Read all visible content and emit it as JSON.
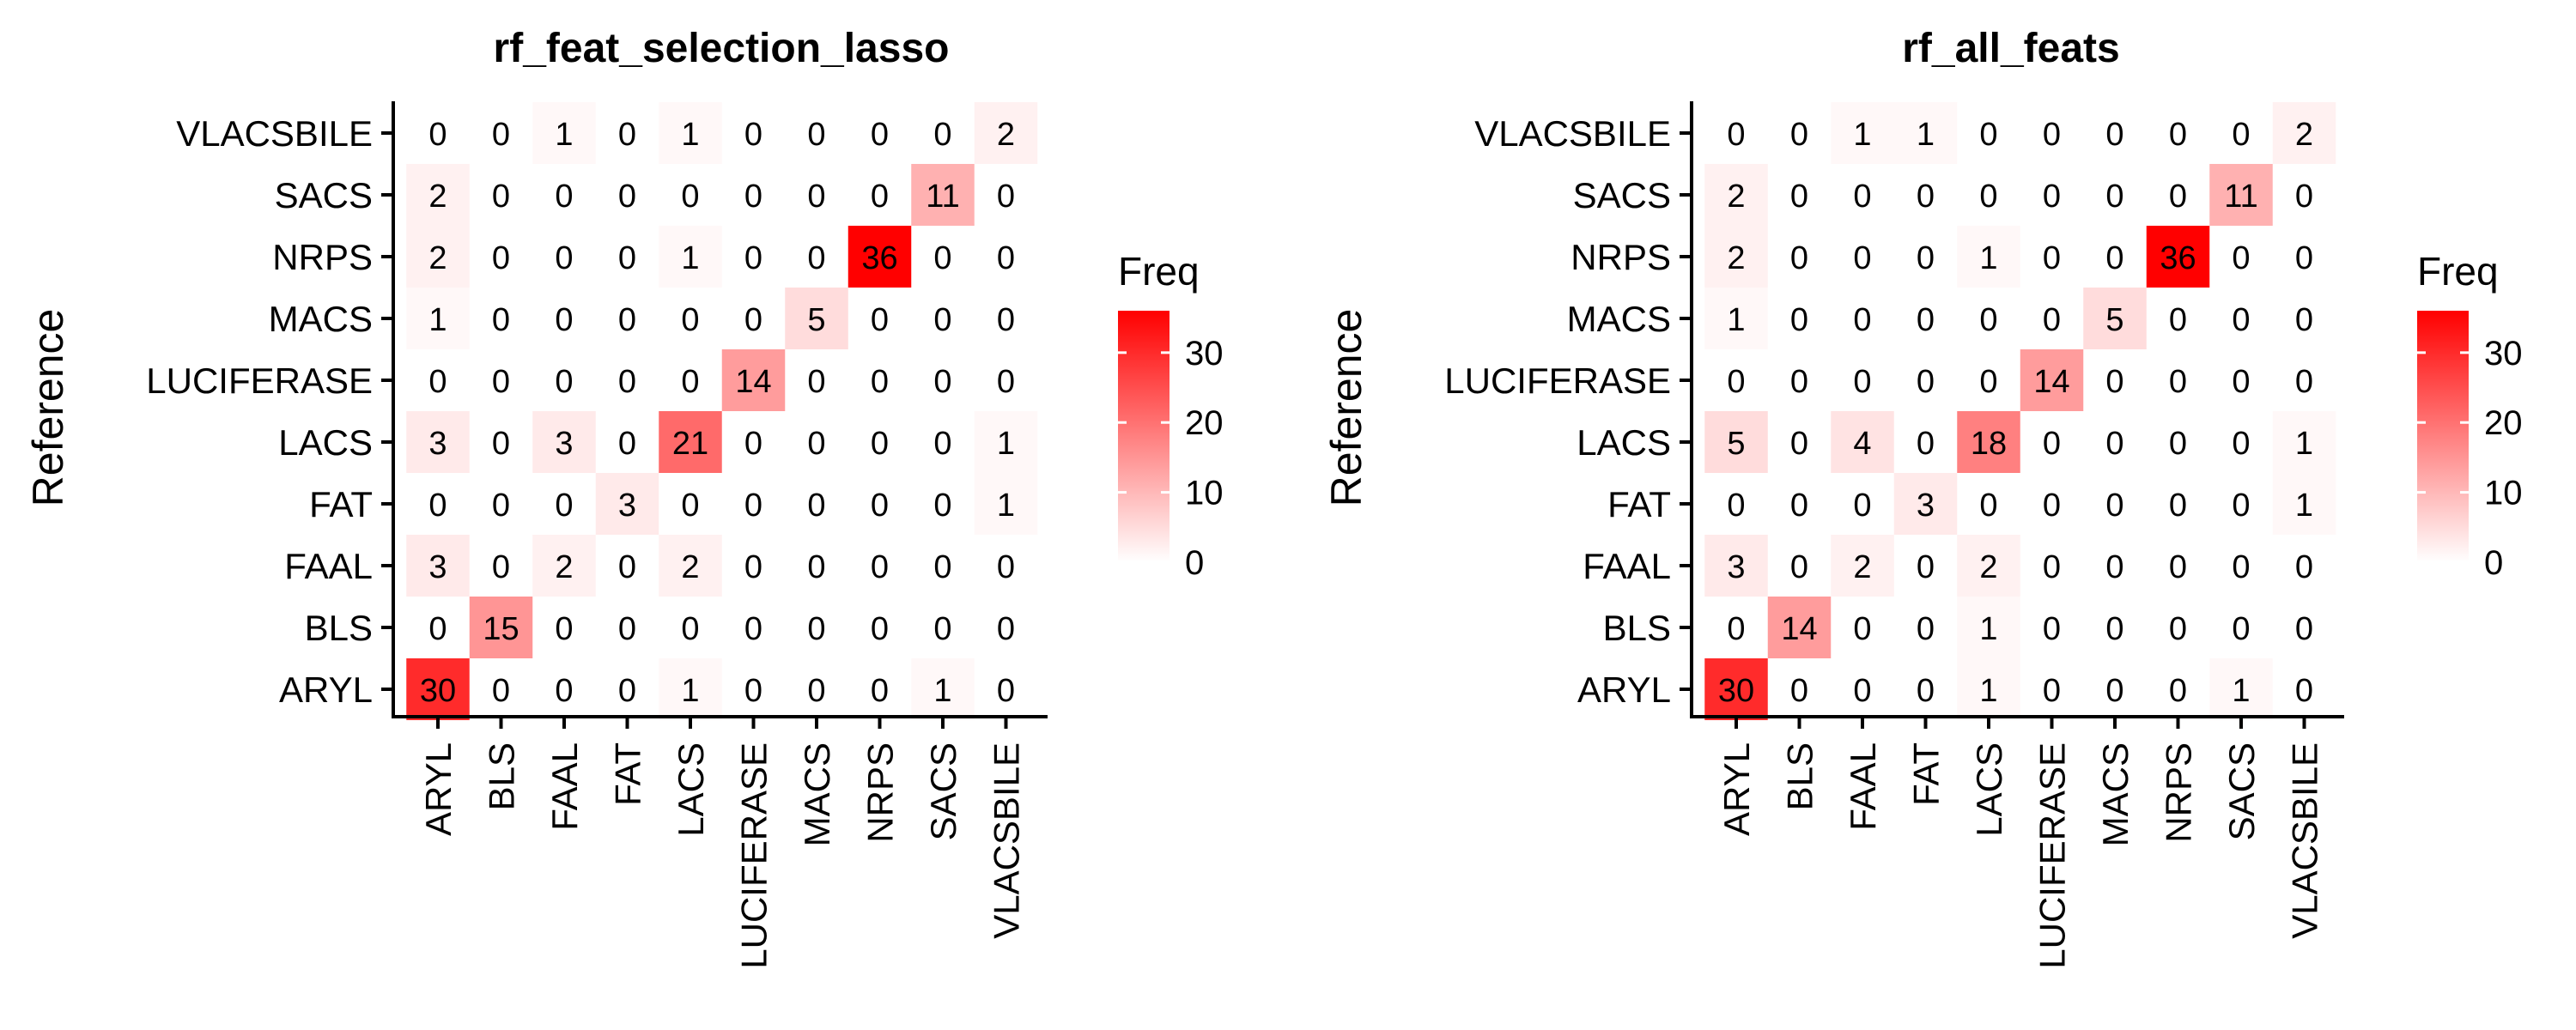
{
  "chart_data": [
    {
      "type": "heatmap",
      "title": "rf_feat_selection_lasso",
      "xlabel": "",
      "ylabel": "Reference",
      "x_categories": [
        "ARYL",
        "BLS",
        "FAAL",
        "FAT",
        "LACS",
        "LUCIFERASE",
        "MACS",
        "NRPS",
        "SACS",
        "VLACSBILE"
      ],
      "y_categories": [
        "ARYL",
        "BLS",
        "FAAL",
        "FAT",
        "LACS",
        "LUCIFERASE",
        "MACS",
        "NRPS",
        "SACS",
        "VLACSBILE"
      ],
      "matrix_note": "rows listed top to bottom: VLACSBILE ... ARYL; columns ARYL ... VLACSBILE",
      "values": [
        [
          0,
          0,
          1,
          0,
          1,
          0,
          0,
          0,
          0,
          2
        ],
        [
          2,
          0,
          0,
          0,
          0,
          0,
          0,
          0,
          11,
          0
        ],
        [
          2,
          0,
          0,
          0,
          1,
          0,
          0,
          36,
          0,
          0
        ],
        [
          1,
          0,
          0,
          0,
          0,
          0,
          5,
          0,
          0,
          0
        ],
        [
          0,
          0,
          0,
          0,
          0,
          14,
          0,
          0,
          0,
          0
        ],
        [
          3,
          0,
          3,
          0,
          21,
          0,
          0,
          0,
          0,
          1
        ],
        [
          0,
          0,
          0,
          3,
          0,
          0,
          0,
          0,
          0,
          1
        ],
        [
          3,
          0,
          2,
          0,
          2,
          0,
          0,
          0,
          0,
          0
        ],
        [
          0,
          15,
          0,
          0,
          0,
          0,
          0,
          0,
          0,
          0
        ],
        [
          30,
          0,
          0,
          0,
          1,
          0,
          0,
          0,
          1,
          0
        ]
      ],
      "legend": {
        "title": "Freq",
        "min": 0,
        "max": 36,
        "ticks": [
          0,
          10,
          20,
          30
        ],
        "low_color": "#ffffff",
        "high_color": "#ff0000"
      }
    },
    {
      "type": "heatmap",
      "title": "rf_all_feats",
      "xlabel": "",
      "ylabel": "Reference",
      "x_categories": [
        "ARYL",
        "BLS",
        "FAAL",
        "FAT",
        "LACS",
        "LUCIFERASE",
        "MACS",
        "NRPS",
        "SACS",
        "VLACSBILE"
      ],
      "y_categories": [
        "ARYL",
        "BLS",
        "FAAL",
        "FAT",
        "LACS",
        "LUCIFERASE",
        "MACS",
        "NRPS",
        "SACS",
        "VLACSBILE"
      ],
      "matrix_note": "rows listed top to bottom: VLACSBILE ... ARYL; columns ARYL ... VLACSBILE",
      "values": [
        [
          0,
          0,
          1,
          1,
          0,
          0,
          0,
          0,
          0,
          2
        ],
        [
          2,
          0,
          0,
          0,
          0,
          0,
          0,
          0,
          11,
          0
        ],
        [
          2,
          0,
          0,
          0,
          1,
          0,
          0,
          36,
          0,
          0
        ],
        [
          1,
          0,
          0,
          0,
          0,
          0,
          5,
          0,
          0,
          0
        ],
        [
          0,
          0,
          0,
          0,
          0,
          14,
          0,
          0,
          0,
          0
        ],
        [
          5,
          0,
          4,
          0,
          18,
          0,
          0,
          0,
          0,
          1
        ],
        [
          0,
          0,
          0,
          3,
          0,
          0,
          0,
          0,
          0,
          1
        ],
        [
          3,
          0,
          2,
          0,
          2,
          0,
          0,
          0,
          0,
          0
        ],
        [
          0,
          14,
          0,
          0,
          1,
          0,
          0,
          0,
          0,
          0
        ],
        [
          30,
          0,
          0,
          0,
          1,
          0,
          0,
          0,
          1,
          0
        ]
      ],
      "legend": {
        "title": "Freq",
        "min": 0,
        "max": 36,
        "ticks": [
          0,
          10,
          20,
          30
        ],
        "low_color": "#ffffff",
        "high_color": "#ff0000"
      }
    }
  ]
}
